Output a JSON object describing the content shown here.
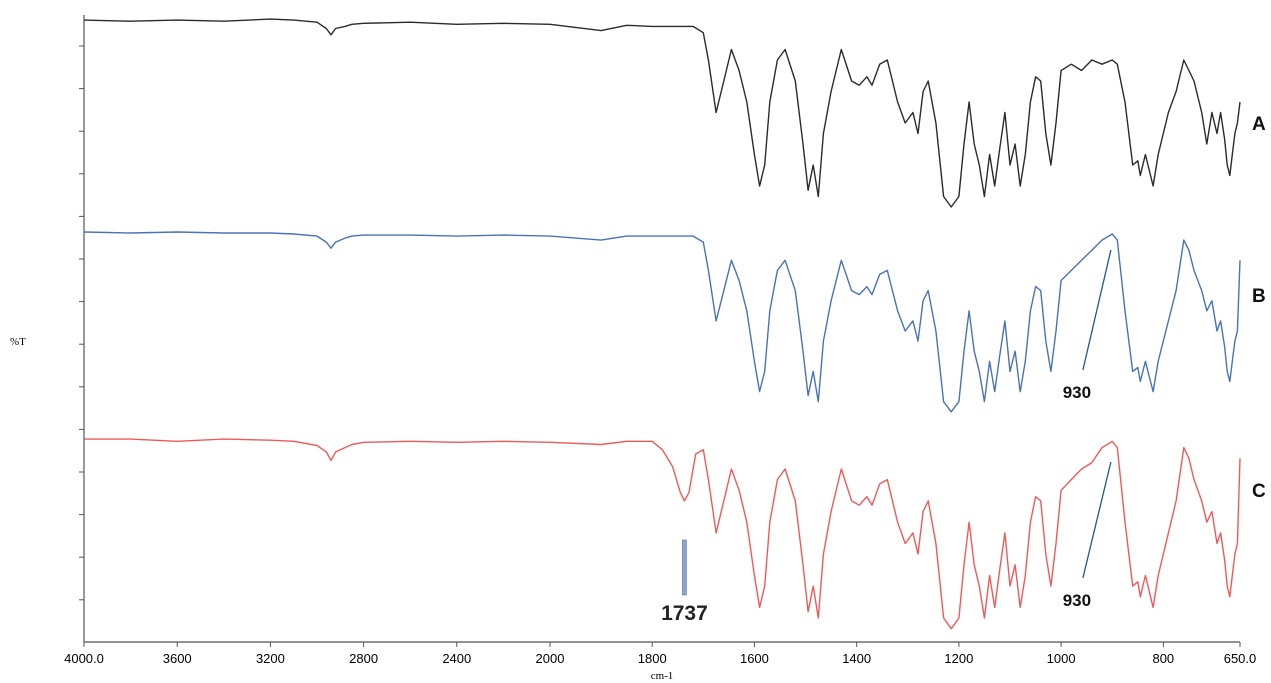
{
  "chart_data": {
    "type": "line",
    "title": "",
    "xlabel": "cm-1",
    "ylabel": "%T",
    "xlim": [
      4000.0,
      650.0
    ],
    "x_reversed": true,
    "x_ticks": [
      4000.0,
      3600,
      3200,
      2800,
      2400,
      2000,
      1800,
      1600,
      1400,
      1200,
      1000,
      800,
      650.0
    ],
    "x_tick_labels": [
      "4000.0",
      "3600",
      "3200",
      "2800",
      "2400",
      "2000",
      "1800",
      "1600",
      "1400",
      "1200",
      "1000",
      "800",
      "650.0"
    ],
    "x_scale_note": "piecewise: compressed above 2000 cm-1, expanded below",
    "grid": false,
    "legend": "none",
    "series": [
      {
        "name": "A",
        "color": "#2b2b2b",
        "x": [
          4000,
          3800,
          3600,
          3400,
          3200,
          3100,
          3000,
          2960,
          2940,
          2920,
          2880,
          2850,
          2800,
          2600,
          2400,
          2200,
          2000,
          1900,
          1850,
          1800,
          1750,
          1720,
          1700,
          1690,
          1675,
          1660,
          1645,
          1630,
          1615,
          1600,
          1590,
          1580,
          1570,
          1555,
          1540,
          1520,
          1505,
          1495,
          1485,
          1475,
          1465,
          1450,
          1430,
          1410,
          1395,
          1380,
          1370,
          1355,
          1340,
          1320,
          1305,
          1290,
          1280,
          1270,
          1260,
          1245,
          1230,
          1215,
          1200,
          1190,
          1180,
          1170,
          1160,
          1150,
          1140,
          1130,
          1120,
          1110,
          1100,
          1090,
          1080,
          1070,
          1060,
          1050,
          1040,
          1030,
          1020,
          1010,
          1000,
          980,
          960,
          940,
          920,
          900,
          890,
          875,
          860,
          850,
          845,
          835,
          828,
          820,
          810,
          800,
          790,
          775,
          760,
          750,
          740,
          725,
          715,
          705,
          695,
          688,
          680,
          675,
          670,
          665,
          660,
          655,
          650
        ],
        "values": [
          99,
          98.5,
          99,
          98.5,
          99.5,
          99,
          98,
          95,
          92,
          95,
          96,
          97,
          97.5,
          98,
          97,
          97.5,
          97,
          94,
          96.5,
          96,
          96,
          96,
          93,
          80,
          55,
          70,
          85,
          75,
          60,
          35,
          20,
          30,
          60,
          80,
          85,
          70,
          40,
          18,
          30,
          15,
          45,
          65,
          85,
          70,
          68,
          72,
          68,
          78,
          80,
          60,
          50,
          55,
          45,
          65,
          70,
          50,
          15,
          10,
          15,
          40,
          60,
          40,
          30,
          15,
          35,
          20,
          38,
          55,
          30,
          40,
          20,
          35,
          60,
          72,
          70,
          45,
          30,
          50,
          75,
          78,
          75,
          80,
          78,
          80,
          78,
          60,
          30,
          32,
          25,
          35,
          28,
          20,
          35,
          45,
          55,
          65,
          80,
          75,
          70,
          55,
          40,
          55,
          45,
          55,
          42,
          30,
          25,
          35,
          45,
          50,
          60
        ]
      },
      {
        "name": "B",
        "color": "#4a72b8",
        "x": [
          4000,
          3800,
          3600,
          3400,
          3200,
          3100,
          3000,
          2960,
          2940,
          2920,
          2880,
          2850,
          2800,
          2600,
          2400,
          2200,
          2000,
          1900,
          1850,
          1800,
          1750,
          1720,
          1700,
          1690,
          1675,
          1660,
          1645,
          1630,
          1615,
          1600,
          1590,
          1580,
          1570,
          1555,
          1540,
          1520,
          1505,
          1495,
          1485,
          1475,
          1465,
          1450,
          1430,
          1410,
          1395,
          1380,
          1370,
          1355,
          1340,
          1320,
          1305,
          1290,
          1280,
          1270,
          1260,
          1245,
          1230,
          1215,
          1200,
          1190,
          1180,
          1170,
          1160,
          1150,
          1140,
          1130,
          1120,
          1110,
          1100,
          1090,
          1080,
          1070,
          1060,
          1050,
          1040,
          1030,
          1020,
          1010,
          1000,
          980,
          960,
          940,
          920,
          900,
          890,
          875,
          860,
          850,
          845,
          835,
          828,
          820,
          810,
          800,
          790,
          775,
          760,
          750,
          740,
          725,
          715,
          705,
          695,
          688,
          680,
          675,
          670,
          665,
          660,
          655,
          650
        ],
        "values": [
          99,
          98.5,
          99,
          98.5,
          98.5,
          98,
          97,
          94,
          91,
          94,
          96,
          97,
          97.5,
          97.5,
          97,
          97.5,
          97,
          95,
          97,
          97,
          97,
          97,
          94,
          80,
          55,
          70,
          85,
          75,
          60,
          35,
          20,
          30,
          60,
          80,
          85,
          70,
          40,
          18,
          30,
          15,
          45,
          65,
          85,
          70,
          68,
          72,
          68,
          78,
          80,
          60,
          50,
          55,
          45,
          65,
          70,
          50,
          15,
          10,
          15,
          40,
          60,
          40,
          30,
          15,
          35,
          20,
          38,
          55,
          30,
          40,
          20,
          35,
          60,
          72,
          70,
          45,
          30,
          50,
          75,
          80,
          85,
          90,
          95,
          98,
          95,
          60,
          30,
          32,
          25,
          35,
          28,
          20,
          35,
          45,
          55,
          70,
          95,
          90,
          80,
          70,
          60,
          65,
          50,
          55,
          42,
          30,
          25,
          35,
          45,
          50,
          85
        ]
      },
      {
        "name": "C",
        "color": "#ee5a5a",
        "x": [
          4000,
          3800,
          3600,
          3400,
          3200,
          3100,
          3000,
          2960,
          2940,
          2920,
          2880,
          2850,
          2800,
          2600,
          2400,
          2200,
          2000,
          1900,
          1850,
          1800,
          1780,
          1760,
          1745,
          1737,
          1728,
          1715,
          1700,
          1690,
          1675,
          1660,
          1645,
          1630,
          1615,
          1600,
          1590,
          1580,
          1570,
          1555,
          1540,
          1520,
          1505,
          1495,
          1485,
          1475,
          1465,
          1450,
          1430,
          1410,
          1395,
          1380,
          1370,
          1355,
          1340,
          1320,
          1305,
          1290,
          1280,
          1270,
          1260,
          1245,
          1230,
          1215,
          1200,
          1190,
          1180,
          1170,
          1160,
          1150,
          1140,
          1130,
          1120,
          1110,
          1100,
          1090,
          1080,
          1070,
          1060,
          1050,
          1040,
          1030,
          1020,
          1010,
          1000,
          980,
          960,
          940,
          920,
          900,
          890,
          875,
          860,
          850,
          845,
          835,
          828,
          820,
          810,
          800,
          790,
          775,
          760,
          750,
          740,
          725,
          715,
          705,
          695,
          688,
          680,
          675,
          670,
          665,
          660,
          655,
          650
        ],
        "values": [
          99,
          99,
          98,
          99,
          98.5,
          98,
          96,
          93,
          89,
          93,
          95,
          96.5,
          97.5,
          98,
          97.5,
          98,
          97.5,
          96.5,
          98,
          98,
          94,
          86,
          74,
          70,
          74,
          92,
          94,
          80,
          55,
          70,
          85,
          75,
          60,
          35,
          20,
          30,
          60,
          80,
          85,
          70,
          40,
          18,
          30,
          15,
          45,
          65,
          85,
          70,
          68,
          72,
          68,
          78,
          80,
          60,
          50,
          55,
          45,
          65,
          70,
          50,
          15,
          10,
          15,
          40,
          60,
          40,
          30,
          15,
          35,
          20,
          38,
          55,
          30,
          40,
          20,
          35,
          60,
          72,
          70,
          45,
          30,
          50,
          75,
          80,
          85,
          88,
          95,
          98,
          95,
          60,
          30,
          32,
          25,
          35,
          28,
          20,
          35,
          45,
          55,
          70,
          95,
          90,
          80,
          70,
          60,
          65,
          50,
          55,
          42,
          30,
          25,
          35,
          45,
          50,
          90
        ]
      }
    ],
    "annotations": [
      {
        "label": "930",
        "x": 930,
        "series": "B"
      },
      {
        "label": "930",
        "x": 930,
        "series": "C"
      },
      {
        "label": "1737",
        "x": 1737,
        "series": "C"
      }
    ]
  }
}
